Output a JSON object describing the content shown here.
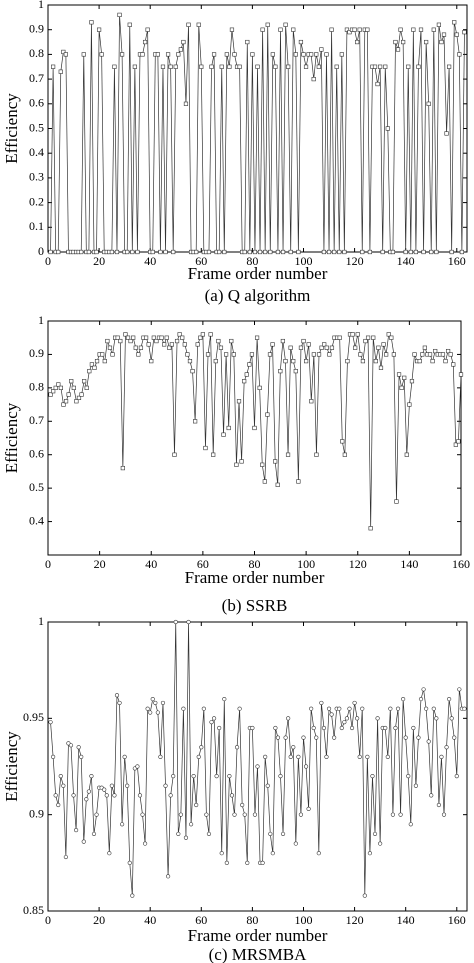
{
  "chart_data": [
    {
      "type": "line",
      "caption": "(a) Q algorithm",
      "xlabel": "Frame order number",
      "ylabel": "Efficiency",
      "color": "#333333",
      "marker": "square",
      "xlim": [
        0,
        164
      ],
      "xticks": [
        0,
        20,
        40,
        60,
        80,
        100,
        120,
        140,
        160
      ],
      "ylim": [
        0,
        1
      ],
      "yticks": [
        0,
        0.1,
        0.2,
        0.3,
        0.4,
        0.5,
        0.6,
        0.7,
        0.8,
        0.9,
        1
      ],
      "x": [
        1,
        2,
        3,
        4,
        5,
        6,
        7,
        8,
        9,
        10,
        11,
        12,
        13,
        14,
        15,
        16,
        17,
        18,
        19,
        20,
        21,
        22,
        23,
        24,
        25,
        26,
        27,
        28,
        29,
        30,
        31,
        32,
        33,
        34,
        35,
        36,
        37,
        38,
        39,
        40,
        41,
        42,
        43,
        44,
        45,
        46,
        47,
        48,
        49,
        50,
        51,
        52,
        53,
        54,
        55,
        56,
        57,
        58,
        59,
        60,
        61,
        62,
        63,
        64,
        65,
        66,
        67,
        68,
        69,
        70,
        71,
        72,
        73,
        74,
        75,
        76,
        77,
        78,
        79,
        80,
        81,
        82,
        83,
        84,
        85,
        86,
        87,
        88,
        89,
        90,
        91,
        92,
        93,
        94,
        95,
        96,
        97,
        98,
        99,
        100,
        101,
        102,
        103,
        104,
        105,
        106,
        107,
        108,
        109,
        110,
        111,
        112,
        113,
        114,
        115,
        116,
        117,
        118,
        119,
        120,
        121,
        122,
        123,
        124,
        125,
        126,
        127,
        128,
        129,
        130,
        131,
        132,
        133,
        134,
        135,
        136,
        137,
        138,
        139,
        140,
        141,
        142,
        143,
        144,
        145,
        146,
        147,
        148,
        149,
        150,
        151,
        152,
        153,
        154,
        155,
        156,
        157,
        158,
        159,
        160,
        161,
        162,
        163
      ],
      "values": [
        0,
        0.75,
        0,
        0,
        0.73,
        0.81,
        0.8,
        0,
        0,
        0,
        0,
        0,
        0,
        0.8,
        0,
        0,
        0.93,
        0,
        0,
        0.9,
        0.8,
        0,
        0,
        0,
        0,
        0.75,
        0,
        0.96,
        0.8,
        0,
        0,
        0.92,
        0,
        0.75,
        0,
        0.8,
        0.8,
        0.85,
        0.9,
        0,
        0,
        0.8,
        0.8,
        0,
        0.75,
        0,
        0.8,
        0.75,
        0,
        0.75,
        0.8,
        0.82,
        0.85,
        0.6,
        0.92,
        0,
        0,
        0,
        0.92,
        0.75,
        0,
        0,
        0,
        0.75,
        0.8,
        0,
        0,
        0.75,
        0,
        0.8,
        0.75,
        0.9,
        0.8,
        0.75,
        0.75,
        0,
        0,
        0.85,
        0,
        0.8,
        0,
        0.75,
        0,
        0.9,
        0,
        0.92,
        0,
        0.8,
        0.75,
        0,
        0.9,
        0,
        0.92,
        0.75,
        0,
        0.9,
        0.8,
        0,
        0.85,
        0.8,
        0.75,
        0.8,
        0.8,
        0.7,
        0.8,
        0.75,
        0.82,
        0,
        0.8,
        0,
        0.9,
        0,
        0.75,
        0,
        0.8,
        0,
        0.9,
        0.89,
        0.9,
        0.9,
        0.85,
        0.9,
        0,
        0.9,
        0.9,
        0,
        0.75,
        0.75,
        0.68,
        0.75,
        0,
        0.75,
        0.5,
        0,
        0,
        0.85,
        0.82,
        0.9,
        0.85,
        0,
        0.75,
        0,
        0.9,
        0,
        0.75,
        0.9,
        0,
        0.85,
        0.6,
        0,
        0.9,
        0,
        0.92,
        0.85,
        0.88,
        0.48,
        0.75,
        0,
        0.93,
        0.88,
        0.8,
        0,
        0.89
      ]
    },
    {
      "type": "line",
      "caption": "(b) SSRB",
      "xlabel": "Frame order number",
      "ylabel": "Efficiency",
      "color": "#333333",
      "marker": "square",
      "xlim": [
        0,
        160
      ],
      "xticks": [
        0,
        20,
        40,
        60,
        80,
        100,
        120,
        140,
        160
      ],
      "ylim": [
        0.3,
        1
      ],
      "yticks": [
        0.4,
        0.5,
        0.6,
        0.7,
        0.8,
        0.9,
        1
      ],
      "x": [
        1,
        2,
        3,
        4,
        5,
        6,
        7,
        8,
        9,
        10,
        11,
        12,
        13,
        14,
        15,
        16,
        17,
        18,
        19,
        20,
        21,
        22,
        23,
        24,
        25,
        26,
        27,
        28,
        29,
        30,
        31,
        32,
        33,
        34,
        35,
        36,
        37,
        38,
        39,
        40,
        41,
        42,
        43,
        44,
        45,
        46,
        47,
        48,
        49,
        50,
        51,
        52,
        53,
        54,
        55,
        56,
        57,
        58,
        59,
        60,
        61,
        62,
        63,
        64,
        65,
        66,
        67,
        68,
        69,
        70,
        71,
        72,
        73,
        74,
        75,
        76,
        77,
        78,
        79,
        80,
        81,
        82,
        83,
        84,
        85,
        86,
        87,
        88,
        89,
        90,
        91,
        92,
        93,
        94,
        95,
        96,
        97,
        98,
        99,
        100,
        101,
        102,
        103,
        104,
        105,
        106,
        107,
        108,
        109,
        110,
        111,
        112,
        113,
        114,
        115,
        116,
        117,
        118,
        119,
        120,
        121,
        122,
        123,
        124,
        125,
        126,
        127,
        128,
        129,
        130,
        131,
        132,
        133,
        134,
        135,
        136,
        137,
        138,
        139,
        140,
        141,
        142,
        143,
        144,
        145,
        146,
        147,
        148,
        149,
        150,
        151,
        152,
        153,
        154,
        155,
        156,
        157,
        158,
        159,
        160
      ],
      "values": [
        0.78,
        0.79,
        0.8,
        0.81,
        0.8,
        0.75,
        0.76,
        0.78,
        0.82,
        0.8,
        0.76,
        0.77,
        0.78,
        0.82,
        0.8,
        0.85,
        0.87,
        0.86,
        0.88,
        0.9,
        0.9,
        0.88,
        0.94,
        0.92,
        0.9,
        0.95,
        0.95,
        0.94,
        0.56,
        0.96,
        0.95,
        0.94,
        0.95,
        0.92,
        0.9,
        0.92,
        0.95,
        0.95,
        0.93,
        0.88,
        0.95,
        0.94,
        0.95,
        0.95,
        0.93,
        0.95,
        0.92,
        0.93,
        0.6,
        0.94,
        0.96,
        0.95,
        0.93,
        0.9,
        0.88,
        0.85,
        0.7,
        0.93,
        0.95,
        0.96,
        0.62,
        0.9,
        0.96,
        0.6,
        0.88,
        0.94,
        0.92,
        0.66,
        0.9,
        0.68,
        0.94,
        0.9,
        0.57,
        0.76,
        0.58,
        0.82,
        0.84,
        0.87,
        0.9,
        0.68,
        0.95,
        0.8,
        0.57,
        0.52,
        0.72,
        0.9,
        0.93,
        0.58,
        0.51,
        0.85,
        0.94,
        0.88,
        0.6,
        0.92,
        0.88,
        0.85,
        0.52,
        0.92,
        0.94,
        0.88,
        0.93,
        0.76,
        0.9,
        0.6,
        0.9,
        0.92,
        0.93,
        0.92,
        0.9,
        0.92,
        0.95,
        0.95,
        0.95,
        0.64,
        0.6,
        0.88,
        0.96,
        0.96,
        0.92,
        0.96,
        0.9,
        0.88,
        0.94,
        0.95,
        0.38,
        0.95,
        0.88,
        0.92,
        0.86,
        0.93,
        0.9,
        0.96,
        0.95,
        0.9,
        0.46,
        0.84,
        0.8,
        0.83,
        0.6,
        0.75,
        0.82,
        0.9,
        0.88,
        0.88,
        0.9,
        0.92,
        0.9,
        0.9,
        0.88,
        0.91,
        0.9,
        0.9,
        0.9,
        0.88,
        0.91,
        0.9,
        0.87,
        0.63,
        0.64,
        0.84
      ]
    },
    {
      "type": "line",
      "caption": "(c) MRSMBA",
      "xlabel": "Frame order number",
      "ylabel": "Efficiency",
      "color": "#333333",
      "marker": "circle",
      "xlim": [
        0,
        164
      ],
      "xticks": [
        0,
        20,
        40,
        60,
        80,
        100,
        120,
        140,
        160
      ],
      "ylim": [
        0.85,
        1
      ],
      "yticks": [
        0.85,
        0.9,
        0.95,
        1
      ],
      "x": [
        1,
        2,
        3,
        4,
        5,
        6,
        7,
        8,
        9,
        10,
        11,
        12,
        13,
        14,
        15,
        16,
        17,
        18,
        19,
        20,
        21,
        22,
        23,
        24,
        25,
        26,
        27,
        28,
        29,
        30,
        31,
        32,
        33,
        34,
        35,
        36,
        37,
        38,
        39,
        40,
        41,
        42,
        43,
        44,
        45,
        46,
        47,
        48,
        49,
        50,
        51,
        52,
        53,
        54,
        55,
        56,
        57,
        58,
        59,
        60,
        61,
        62,
        63,
        64,
        65,
        66,
        67,
        68,
        69,
        70,
        71,
        72,
        73,
        74,
        75,
        76,
        77,
        78,
        79,
        80,
        81,
        82,
        83,
        84,
        85,
        86,
        87,
        88,
        89,
        90,
        91,
        92,
        93,
        94,
        95,
        96,
        97,
        98,
        99,
        100,
        101,
        102,
        103,
        104,
        105,
        106,
        107,
        108,
        109,
        110,
        111,
        112,
        113,
        114,
        115,
        116,
        117,
        118,
        119,
        120,
        121,
        122,
        123,
        124,
        125,
        126,
        127,
        128,
        129,
        130,
        131,
        132,
        133,
        134,
        135,
        136,
        137,
        138,
        139,
        140,
        141,
        142,
        143,
        144,
        145,
        146,
        147,
        148,
        149,
        150,
        151,
        152,
        153,
        154,
        155,
        156,
        157,
        158,
        159,
        160,
        161,
        162,
        163
      ],
      "values": [
        0.948,
        0.93,
        0.91,
        0.905,
        0.92,
        0.915,
        0.878,
        0.937,
        0.936,
        0.91,
        0.892,
        0.935,
        0.93,
        0.886,
        0.908,
        0.912,
        0.92,
        0.89,
        0.9,
        0.914,
        0.914,
        0.913,
        0.91,
        0.88,
        0.915,
        0.91,
        0.962,
        0.958,
        0.895,
        0.93,
        0.915,
        0.875,
        0.858,
        0.924,
        0.925,
        0.91,
        0.9,
        0.885,
        0.955,
        0.953,
        0.96,
        0.958,
        0.953,
        0.93,
        0.958,
        0.915,
        0.868,
        0.91,
        0.92,
        1.0,
        0.89,
        0.9,
        0.955,
        0.888,
        1.0,
        0.895,
        0.92,
        0.905,
        0.93,
        0.935,
        0.955,
        0.9,
        0.89,
        0.948,
        0.95,
        0.92,
        0.945,
        0.88,
        0.96,
        0.875,
        0.92,
        0.91,
        0.9,
        0.935,
        0.955,
        0.905,
        0.9,
        0.875,
        0.945,
        0.945,
        0.9,
        0.925,
        0.875,
        0.875,
        0.93,
        0.915,
        0.89,
        0.88,
        0.945,
        0.94,
        0.92,
        0.89,
        0.94,
        0.95,
        0.93,
        0.935,
        0.885,
        0.93,
        0.9,
        0.94,
        0.925,
        0.903,
        0.955,
        0.945,
        0.94,
        0.88,
        0.958,
        0.945,
        0.93,
        0.955,
        0.952,
        0.94,
        0.955,
        0.955,
        0.945,
        0.948,
        0.95,
        0.955,
        0.945,
        0.958,
        0.95,
        0.93,
        0.955,
        0.858,
        0.93,
        0.88,
        0.92,
        0.89,
        0.95,
        0.885,
        0.945,
        0.945,
        0.93,
        0.955,
        0.9,
        0.945,
        0.955,
        0.9,
        0.96,
        0.94,
        0.92,
        0.895,
        0.945,
        0.915,
        0.94,
        0.96,
        0.965,
        0.955,
        0.938,
        0.91,
        0.955,
        0.95,
        0.905,
        0.93,
        0.9,
        0.935,
        0.96,
        0.95,
        0.94,
        0.92,
        0.965,
        0.955,
        0.955
      ]
    }
  ]
}
